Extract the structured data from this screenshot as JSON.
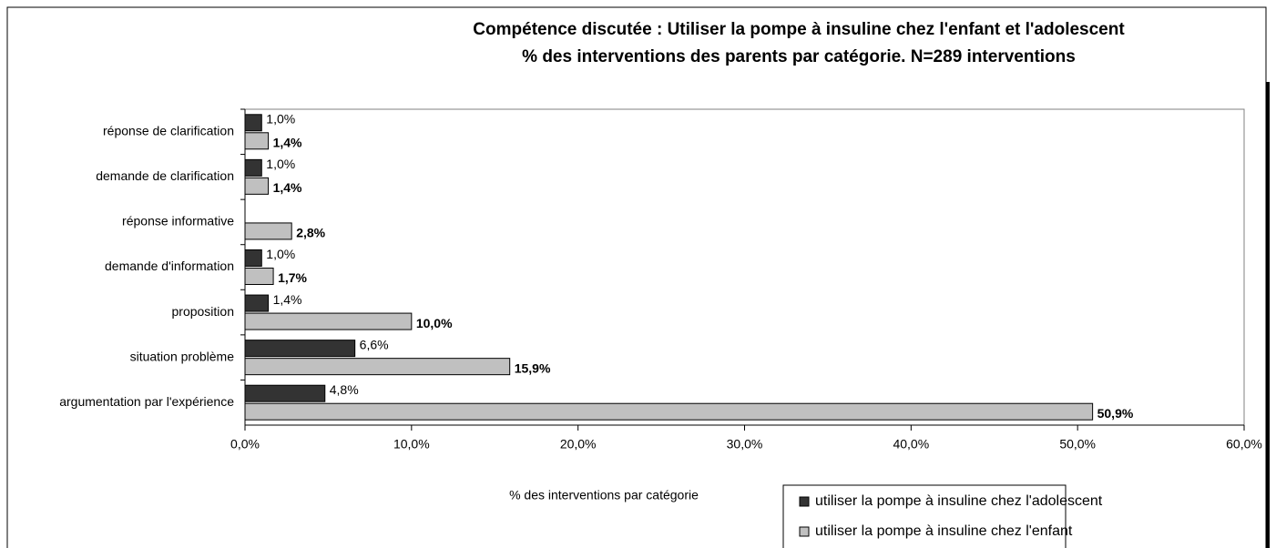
{
  "chart_data": {
    "type": "hbar",
    "title": "Compétence discutée : Utiliser la pompe à insuline chez l'enfant et l'adolescent",
    "subtitle": "% des interventions des parents par catégorie. N=289 interventions",
    "x_label": "% des interventions par catégorie",
    "categories": [
      "réponse de clarification",
      "demande de clarification",
      "réponse informative",
      "demande d'information",
      "proposition",
      "situation problème",
      "argumentation par l'expérience"
    ],
    "series": [
      {
        "name": "utiliser la pompe à insuline chez l'adolescent",
        "color": "#333333",
        "values": [
          1.0,
          1.0,
          null,
          1.0,
          1.4,
          6.6,
          4.8
        ],
        "value_labels": [
          "1,0%",
          "1,0%",
          null,
          "1,0%",
          "1,4%",
          "6,6%",
          "4,8%"
        ]
      },
      {
        "name": "utiliser la pompe à insuline chez l'enfant",
        "color": "#c0c0c0",
        "values": [
          1.4,
          1.4,
          2.8,
          1.7,
          10.0,
          15.9,
          50.9
        ],
        "value_labels": [
          "1,4%",
          "1,4%",
          "2,8%",
          "1,7%",
          "10,0%",
          "15,9%",
          "50,9%"
        ]
      }
    ],
    "xlim": [
      0,
      60
    ],
    "xticks": [
      {
        "value": 0,
        "label": "0,0%"
      },
      {
        "value": 10,
        "label": "10,0%"
      },
      {
        "value": 20,
        "label": "20,0%"
      },
      {
        "value": 30,
        "label": "30,0%"
      },
      {
        "value": 40,
        "label": "40,0%"
      },
      {
        "value": 50,
        "label": "50,0%"
      },
      {
        "value": 60,
        "label": "60,0%"
      }
    ]
  }
}
